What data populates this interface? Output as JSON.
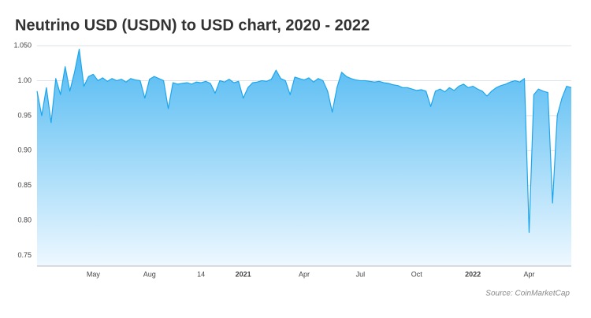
{
  "chart_data": {
    "type": "area",
    "title": "Neutrino USD (USDN) to USD chart, 2020 - 2022",
    "source": "Source: CoinMarketCap",
    "color": "#1ea6ec",
    "grid": true,
    "ylim": [
      0.735,
      1.05
    ],
    "yticks": [
      {
        "value": 1.05,
        "label": "1.050"
      },
      {
        "value": 1,
        "label": "1.00"
      },
      0.95,
      {
        "value": 0.9,
        "label": "0.90"
      },
      0.85,
      {
        "value": 0.8,
        "label": "0.80"
      },
      0.75
    ],
    "categories": [
      null,
      null,
      null,
      null,
      null,
      null,
      null,
      null,
      null,
      null,
      null,
      null,
      "May",
      null,
      null,
      null,
      null,
      null,
      null,
      null,
      null,
      null,
      null,
      null,
      "Aug",
      null,
      null,
      null,
      null,
      null,
      null,
      null,
      null,
      null,
      null,
      "14",
      null,
      null,
      null,
      null,
      null,
      null,
      null,
      null,
      "2021",
      null,
      null,
      null,
      null,
      null,
      null,
      null,
      null,
      null,
      null,
      null,
      null,
      "Apr",
      null,
      null,
      null,
      null,
      null,
      null,
      null,
      null,
      null,
      null,
      null,
      "Jul",
      null,
      null,
      null,
      null,
      null,
      null,
      null,
      null,
      null,
      null,
      null,
      "Oct",
      null,
      null,
      null,
      null,
      null,
      null,
      null,
      null,
      null,
      null,
      null,
      "2022",
      null,
      null,
      null,
      null,
      null,
      null,
      null,
      null,
      null,
      null,
      null,
      "Apr",
      null,
      null,
      null,
      null,
      null,
      null,
      null,
      null,
      null
    ],
    "values": [
      0.985,
      0.95,
      0.99,
      0.94,
      1.003,
      0.98,
      1.02,
      0.985,
      1.012,
      1.045,
      0.992,
      1.006,
      1.009,
      1.0,
      1.004,
      0.999,
      1.003,
      1.0,
      1.002,
      0.998,
      1.003,
      1.001,
      1.0,
      0.975,
      1.002,
      1.006,
      1.003,
      1.0,
      0.96,
      0.997,
      0.995,
      0.996,
      0.997,
      0.995,
      0.998,
      0.997,
      0.999,
      0.996,
      0.982,
      1.0,
      0.998,
      1.002,
      0.997,
      0.999,
      0.975,
      0.99,
      0.997,
      0.998,
      1.0,
      0.999,
      1.002,
      1.015,
      1.003,
      1.0,
      0.98,
      1.005,
      1.003,
      1.001,
      1.004,
      0.998,
      1.003,
      1.0,
      0.985,
      0.955,
      0.99,
      1.012,
      1.006,
      1.003,
      1.001,
      1.0,
      1.0,
      0.999,
      0.998,
      0.999,
      0.997,
      0.996,
      0.994,
      0.993,
      0.99,
      0.99,
      0.988,
      0.986,
      0.987,
      0.985,
      0.963,
      0.985,
      0.988,
      0.984,
      0.99,
      0.986,
      0.992,
      0.995,
      0.99,
      0.992,
      0.988,
      0.985,
      0.978,
      0.985,
      0.99,
      0.993,
      0.995,
      0.998,
      1.0,
      0.998,
      1.003,
      0.783,
      0.98,
      0.988,
      0.985,
      0.983,
      0.825,
      0.95,
      0.975,
      0.992,
      0.99
    ]
  }
}
